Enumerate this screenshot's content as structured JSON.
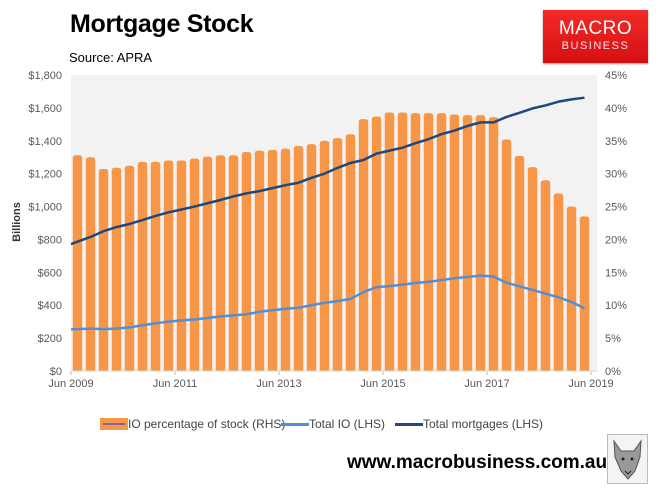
{
  "header": {
    "title": "Mortgage Stock",
    "source": "Source: APRA"
  },
  "logo": {
    "line1": "MACRO",
    "line2": "BUSINESS"
  },
  "footer": {
    "url": "www.macrobusiness.com.au"
  },
  "chart_data": {
    "type": "bar+line",
    "title": "Mortgage Stock",
    "ylabel": "Billions",
    "ylim_left": [
      0,
      1800
    ],
    "ylim_right": [
      0,
      45
    ],
    "left_ticks": [
      "$0",
      "$200",
      "$400",
      "$600",
      "$800",
      "$1,000",
      "$1,200",
      "$1,400",
      "$1,600",
      "$1,800"
    ],
    "right_ticks": [
      "0%",
      "5%",
      "10%",
      "15%",
      "20%",
      "25%",
      "30%",
      "35%",
      "40%",
      "45%"
    ],
    "x_ticks": [
      "Jun 2009",
      "Jun 2011",
      "Jun 2013",
      "Jun 2015",
      "Jun 2017",
      "Jun 2019"
    ],
    "x_start": "Jun 2009",
    "frequency": "quarterly",
    "legend_position": "bottom",
    "series": [
      {
        "name": "IO percentage of stock (RHS)",
        "type": "bar",
        "axis": "right",
        "color": "#f79646",
        "values": [
          32.8,
          32.5,
          30.7,
          30.9,
          31.2,
          31.8,
          31.8,
          32.0,
          32.0,
          32.3,
          32.6,
          32.8,
          32.8,
          33.3,
          33.5,
          33.6,
          33.8,
          34.2,
          34.5,
          35.0,
          35.4,
          36.0,
          38.3,
          38.7,
          39.3,
          39.3,
          39.2,
          39.2,
          39.2,
          39.0,
          38.9,
          38.9,
          38.6,
          35.2,
          32.7,
          31.0,
          29.0,
          27.0,
          25.0,
          23.5
        ]
      },
      {
        "name": "Total IO (LHS)",
        "type": "line",
        "axis": "left",
        "color": "#558ed5",
        "values": [
          253,
          258,
          255,
          258,
          265,
          278,
          290,
          300,
          308,
          313,
          322,
          332,
          338,
          345,
          360,
          370,
          378,
          385,
          400,
          415,
          425,
          438,
          480,
          510,
          516,
          525,
          535,
          542,
          553,
          564,
          572,
          580,
          575,
          537,
          515,
          493,
          470,
          448,
          420,
          381
        ]
      },
      {
        "name": "Total mortgages (LHS)",
        "type": "line",
        "axis": "left",
        "color": "#1f497d",
        "values": [
          772,
          815,
          850,
          875,
          894,
          918,
          943,
          965,
          982,
          1000,
          1020,
          1040,
          1062,
          1080,
          1094,
          1112,
          1130,
          1145,
          1175,
          1200,
          1235,
          1265,
          1283,
          1322,
          1340,
          1358,
          1385,
          1410,
          1440,
          1462,
          1490,
          1512,
          1512,
          1545,
          1570,
          1597,
          1615,
          1638,
          1652,
          1662
        ]
      }
    ]
  }
}
